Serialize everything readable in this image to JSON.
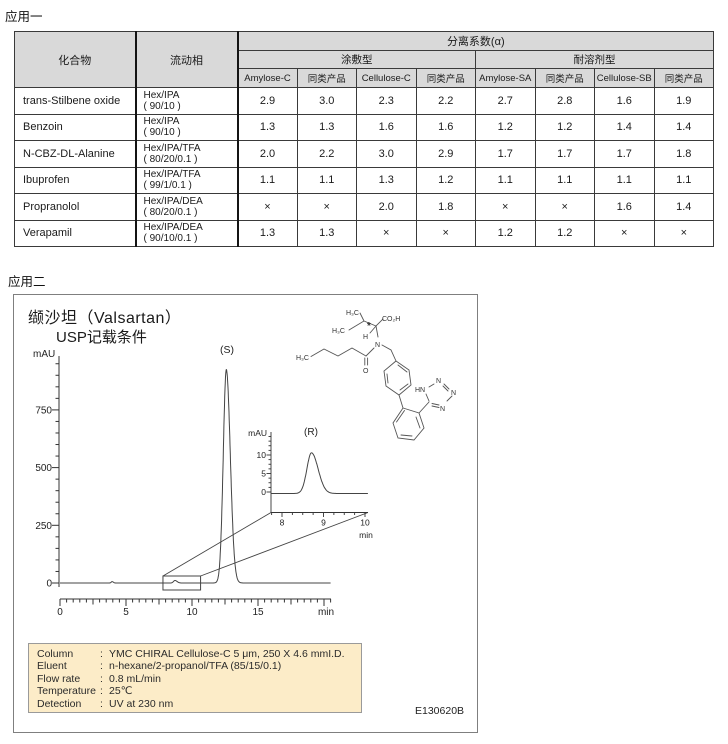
{
  "page": {
    "app1_label": "应用一",
    "app2_label": "应用二"
  },
  "table": {
    "header": {
      "compound": "化合物",
      "mobile_phase": "流动相",
      "alpha": "分离系数(α)",
      "groups": [
        {
          "label": "涂敷型"
        },
        {
          "label": "耐溶剂型"
        }
      ],
      "columns": [
        "Amylose-C",
        "同类产品",
        "Cellulose-C",
        "同类产品",
        "Amylose-SA",
        "同类产品",
        "Cellulose-SB",
        "同类产品"
      ]
    },
    "rows": [
      {
        "compound": "trans-Stilbene oxide",
        "mobile_phase": [
          "Hex/IPA",
          "( 90/10 )"
        ],
        "values": [
          "2.9",
          "3.0",
          "2.3",
          "2.2",
          "2.7",
          "2.8",
          "1.6",
          "1.9"
        ]
      },
      {
        "compound": "Benzoin",
        "mobile_phase": [
          "Hex/IPA",
          "( 90/10 )"
        ],
        "values": [
          "1.3",
          "1.3",
          "1.6",
          "1.6",
          "1.2",
          "1.2",
          "1.4",
          "1.4"
        ]
      },
      {
        "compound": "N-CBZ-DL-Alanine",
        "mobile_phase": [
          "Hex/IPA/TFA",
          "( 80/20/0.1 )"
        ],
        "values": [
          "2.0",
          "2.2",
          "3.0",
          "2.9",
          "1.7",
          "1.7",
          "1.7",
          "1.8"
        ]
      },
      {
        "compound": "Ibuprofen",
        "mobile_phase": [
          "Hex/IPA/TFA",
          "( 99/1/0.1 )"
        ],
        "values": [
          "1.1",
          "1.1",
          "1.3",
          "1.2",
          "1.1",
          "1.1",
          "1.1",
          "1.1"
        ]
      },
      {
        "compound": "Propranolol",
        "mobile_phase": [
          "Hex/IPA/DEA",
          "( 80/20/0.1 )"
        ],
        "values": [
          "×",
          "×",
          "2.0",
          "1.8",
          "×",
          "×",
          "1.6",
          "1.4"
        ]
      },
      {
        "compound": "Verapamil",
        "mobile_phase": [
          "Hex/IPA/DEA",
          "( 90/10/0.1 )"
        ],
        "values": [
          "1.3",
          "1.3",
          "×",
          "×",
          "1.2",
          "1.2",
          "×",
          "×"
        ]
      }
    ]
  },
  "figure": {
    "title_line1": "缬沙坦（Valsartan）",
    "title_line2": "USP记载条件",
    "figure_id": "E130620B",
    "conditions": {
      "sep": ":",
      "rows": [
        {
          "label": "Column",
          "value": "YMC CHIRAL Cellulose-C 5 μm, 250 X 4.6 mmI.D."
        },
        {
          "label": "Eluent",
          "value": "n-hexane/2-propanol/TFA (85/15/0.1)"
        },
        {
          "label": "Flow rate",
          "value": "0.8 mL/min"
        },
        {
          "label": "Temperature",
          "value": "25℃"
        },
        {
          "label": "Detection",
          "value": "UV at 230 nm"
        }
      ]
    },
    "structure_labels": {
      "me1": "H₃C",
      "me2": "H₃C",
      "me3": "H₃C",
      "acid": "CO₂H",
      "chiral": "*",
      "h": "H",
      "n": "N",
      "o": "O",
      "hn": "HN",
      "n2": "N",
      "n3": "N",
      "n4": "N"
    }
  },
  "chart_data": {
    "type": "line",
    "title": "缬沙坦（Valsartan） USP记载条件",
    "main": {
      "ylabel": "mAU",
      "xlabel": "min",
      "xlim": [
        0,
        20.5
      ],
      "ylim": [
        0,
        985
      ],
      "x_ticks": [
        0,
        5,
        10,
        15
      ],
      "y_ticks": [
        0,
        250,
        500,
        750
      ],
      "x_minor_step": 0.5,
      "y_minor_step": 50,
      "grid": false,
      "peaks": [
        {
          "name": "(S)",
          "rt_min": 12.6,
          "height_mAU": 925,
          "sigma_lead_min": 0.23,
          "sigma_tail_min": 0.3
        },
        {
          "name": "(R)",
          "rt_min": 8.71,
          "height_mAU": 11,
          "sigma_lead_min": 0.11,
          "sigma_tail_min": 0.16
        },
        {
          "name": "baseline-blip",
          "rt_min": 3.95,
          "height_mAU": 6,
          "sigma_lead_min": 0.07,
          "sigma_tail_min": 0.09
        }
      ],
      "zoom_box_min": [
        7.8,
        10.65
      ]
    },
    "inset": {
      "name": "(R)",
      "ylabel": "mAU",
      "xlabel": "min",
      "xlim": [
        7.73,
        10.07
      ],
      "ylim": [
        -1.5,
        16
      ],
      "x_ticks": [
        8,
        9,
        10
      ],
      "y_ticks": [
        0,
        5,
        10
      ],
      "x_minor_step": 0.25,
      "y_minor_step": 1.25,
      "peak": {
        "name": "(R)",
        "rt_min": 8.71,
        "height_mAU": 11,
        "sigma_lead_min": 0.11,
        "sigma_tail_min": 0.16
      }
    }
  }
}
